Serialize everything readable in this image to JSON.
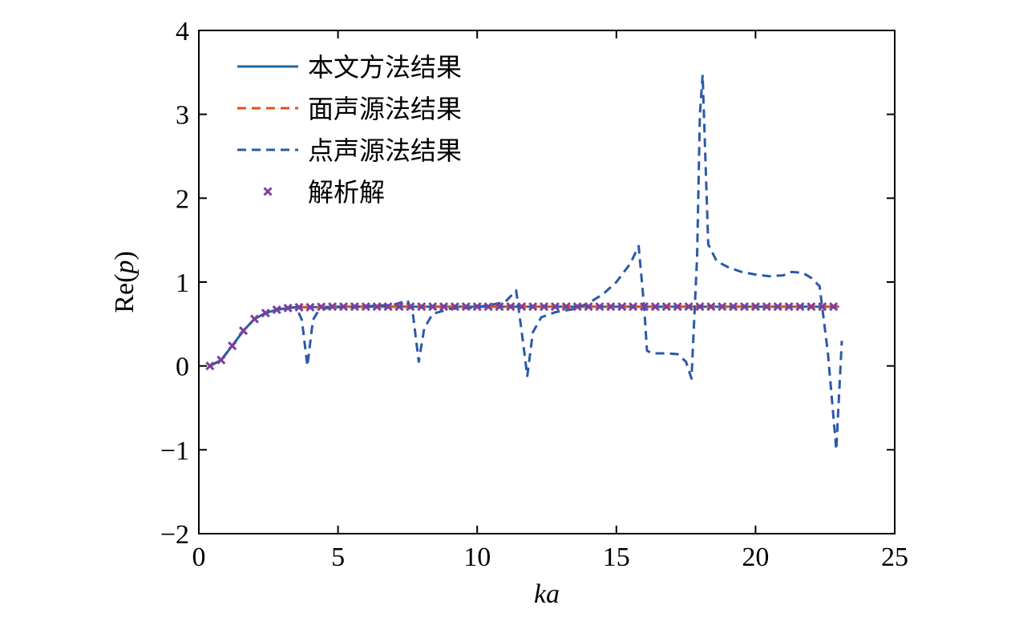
{
  "chart_data": {
    "type": "line",
    "title": "",
    "xlabel_main": "ka",
    "ylabel_prefix": "Re(",
    "ylabel_var": "p",
    "ylabel_suffix": ")",
    "xlim": [
      0,
      25
    ],
    "ylim": [
      -2,
      4
    ],
    "xticks": [
      0,
      5,
      10,
      15,
      20,
      25
    ],
    "yticks": [
      -2,
      -1,
      0,
      1,
      2,
      3,
      4
    ],
    "xtick_labels": [
      "0",
      "5",
      "10",
      "15",
      "20",
      "25"
    ],
    "ytick_labels": [
      "−2",
      "−1",
      "0",
      "1",
      "2",
      "3",
      "4"
    ],
    "grid": false,
    "legend_position": "top-left",
    "series": [
      {
        "name": "本文方法结果",
        "style": "solid",
        "color": "#1f6aa5",
        "x": [
          0.4,
          0.8,
          1.2,
          1.6,
          2.0,
          2.4,
          2.8,
          3.2,
          3.6,
          4.0,
          5.0,
          6.0,
          7.0,
          8.0,
          9.0,
          10.0,
          11.0,
          12.0,
          13.0,
          14.0,
          15.0,
          16.0,
          17.0,
          18.0,
          19.0,
          20.0,
          21.0,
          22.0,
          23.0
        ],
        "y": [
          0.0,
          0.07,
          0.24,
          0.42,
          0.56,
          0.63,
          0.67,
          0.69,
          0.7,
          0.7,
          0.707,
          0.707,
          0.707,
          0.707,
          0.707,
          0.707,
          0.707,
          0.707,
          0.707,
          0.707,
          0.707,
          0.707,
          0.707,
          0.707,
          0.707,
          0.707,
          0.707,
          0.707,
          0.707
        ]
      },
      {
        "name": "面声源法结果",
        "style": "dashed",
        "color": "#d95319",
        "x": [
          0.4,
          0.8,
          1.2,
          1.6,
          2.0,
          2.4,
          2.8,
          3.2,
          3.6,
          4.0,
          5.0,
          6.0,
          7.0,
          8.0,
          9.0,
          10.0,
          11.0,
          12.0,
          13.0,
          14.0,
          15.0,
          16.0,
          17.0,
          18.0,
          19.0,
          20.0,
          21.0,
          22.0,
          23.0
        ],
        "y": [
          0.0,
          0.07,
          0.24,
          0.42,
          0.56,
          0.63,
          0.67,
          0.69,
          0.7,
          0.7,
          0.707,
          0.707,
          0.707,
          0.707,
          0.707,
          0.707,
          0.707,
          0.707,
          0.707,
          0.707,
          0.707,
          0.707,
          0.707,
          0.707,
          0.707,
          0.707,
          0.707,
          0.707,
          0.707
        ]
      },
      {
        "name": "点声源法结果",
        "style": "dashed",
        "color": "#2b59a8",
        "x": [
          0.4,
          0.8,
          1.2,
          1.6,
          2.0,
          2.4,
          2.8,
          3.2,
          3.5,
          3.7,
          3.9,
          4.1,
          4.3,
          4.6,
          5.0,
          6.0,
          7.0,
          7.5,
          7.7,
          7.9,
          8.1,
          8.4,
          9.0,
          10.0,
          11.0,
          11.4,
          11.6,
          11.8,
          12.0,
          12.3,
          12.8,
          13.5,
          14.0,
          14.5,
          15.0,
          15.5,
          15.8,
          16.0,
          16.1,
          16.3,
          16.8,
          17.2,
          17.5,
          17.7,
          17.9,
          18.0,
          18.1,
          18.3,
          18.6,
          19.0,
          19.5,
          20.0,
          20.5,
          21.0,
          21.3,
          21.7,
          22.0,
          22.3,
          22.6,
          22.9,
          23.1
        ],
        "y": [
          0.0,
          0.07,
          0.24,
          0.42,
          0.56,
          0.63,
          0.67,
          0.69,
          0.7,
          0.55,
          0.0,
          0.55,
          0.66,
          0.69,
          0.7,
          0.71,
          0.73,
          0.78,
          0.6,
          0.05,
          0.45,
          0.62,
          0.68,
          0.7,
          0.76,
          0.9,
          0.4,
          -0.12,
          0.4,
          0.58,
          0.64,
          0.68,
          0.75,
          0.85,
          1.0,
          1.22,
          1.43,
          0.7,
          0.18,
          0.15,
          0.15,
          0.14,
          0.05,
          -0.15,
          1.3,
          3.0,
          3.47,
          1.45,
          1.25,
          1.18,
          1.12,
          1.09,
          1.07,
          1.08,
          1.12,
          1.11,
          1.05,
          0.95,
          0.15,
          -1.0,
          0.3
        ]
      },
      {
        "name": "解析解",
        "style": "markers",
        "marker": "x",
        "color": "#7b3f9e",
        "x": [
          0.4,
          0.8,
          1.2,
          1.6,
          2.0,
          2.4,
          2.8,
          3.2,
          3.6,
          4.0,
          4.4,
          4.8,
          5.2,
          5.6,
          6.0,
          6.4,
          6.8,
          7.2,
          7.6,
          8.0,
          8.4,
          8.8,
          9.2,
          9.6,
          10.0,
          10.4,
          10.8,
          11.2,
          11.6,
          12.0,
          12.4,
          12.8,
          13.2,
          13.6,
          14.0,
          14.4,
          14.8,
          15.2,
          15.6,
          16.0,
          16.4,
          16.8,
          17.2,
          17.6,
          18.0,
          18.4,
          18.8,
          19.2,
          19.6,
          20.0,
          20.4,
          20.8,
          21.2,
          21.6,
          22.0,
          22.4,
          22.8
        ],
        "y": [
          0.0,
          0.07,
          0.24,
          0.42,
          0.56,
          0.63,
          0.67,
          0.69,
          0.7,
          0.7,
          0.705,
          0.707,
          0.707,
          0.707,
          0.707,
          0.707,
          0.707,
          0.707,
          0.707,
          0.707,
          0.707,
          0.707,
          0.707,
          0.707,
          0.707,
          0.707,
          0.707,
          0.707,
          0.707,
          0.707,
          0.707,
          0.707,
          0.707,
          0.707,
          0.707,
          0.707,
          0.707,
          0.707,
          0.707,
          0.707,
          0.707,
          0.707,
          0.707,
          0.707,
          0.707,
          0.707,
          0.707,
          0.707,
          0.707,
          0.707,
          0.707,
          0.707,
          0.707,
          0.707,
          0.707,
          0.707,
          0.707
        ]
      }
    ]
  }
}
